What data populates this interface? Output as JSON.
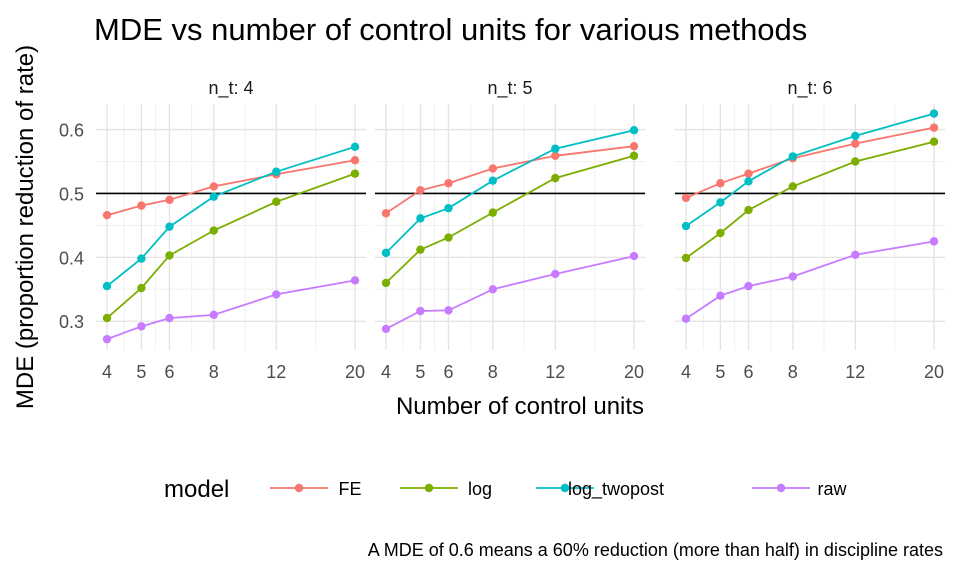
{
  "chart_data": {
    "type": "line",
    "title": "MDE vs number of control units for various methods",
    "xlabel": "Number of control units",
    "ylabel": "MDE (proportion reduction of rate)",
    "caption": "A MDE of 0.6 means a 60% reduction (more than half) in discipline rates",
    "x_scale": "log",
    "x_ticks": [
      4,
      5,
      6,
      8,
      12,
      20
    ],
    "x_range": [
      4,
      20
    ],
    "y_ticks": [
      0.3,
      0.4,
      0.5,
      0.6
    ],
    "y_range": [
      0.255,
      0.64
    ],
    "reference_line": 0.5,
    "grid": true,
    "legend": {
      "title": "model",
      "placement": "bottom",
      "entries": [
        "FE",
        "log",
        "log_twopost",
        "raw"
      ]
    },
    "colors": {
      "FE": "#F8766D",
      "log": "#7CAE00",
      "log_twopost": "#00BFC4",
      "raw": "#C77CFF"
    },
    "panels": [
      {
        "label": "n_t: 4",
        "x": [
          4,
          5,
          6,
          8,
          12,
          20
        ],
        "series": [
          {
            "name": "FE",
            "values": [
              0.466,
              0.481,
              0.49,
              0.511,
              0.53,
              0.552
            ]
          },
          {
            "name": "log",
            "values": [
              0.305,
              0.352,
              0.403,
              0.442,
              0.487,
              0.531
            ]
          },
          {
            "name": "log_twopost",
            "values": [
              0.355,
              0.398,
              0.448,
              0.495,
              0.534,
              0.573
            ]
          },
          {
            "name": "raw",
            "values": [
              0.272,
              0.292,
              0.305,
              0.31,
              0.342,
              0.364
            ]
          }
        ]
      },
      {
        "label": "n_t: 5",
        "x": [
          4,
          5,
          6,
          8,
          12,
          20
        ],
        "series": [
          {
            "name": "FE",
            "values": [
              0.469,
              0.505,
              0.516,
              0.539,
              0.559,
              0.574
            ]
          },
          {
            "name": "log",
            "values": [
              0.36,
              0.412,
              0.431,
              0.47,
              0.524,
              0.559
            ]
          },
          {
            "name": "log_twopost",
            "values": [
              0.407,
              0.461,
              0.477,
              0.52,
              0.57,
              0.599
            ]
          },
          {
            "name": "raw",
            "values": [
              0.288,
              0.316,
              0.317,
              0.35,
              0.374,
              0.402
            ]
          }
        ]
      },
      {
        "label": "n_t: 6",
        "x": [
          4,
          5,
          6,
          8,
          12,
          20
        ],
        "series": [
          {
            "name": "FE",
            "values": [
              0.493,
              0.516,
              0.531,
              0.555,
              0.578,
              0.603
            ]
          },
          {
            "name": "log",
            "values": [
              0.399,
              0.438,
              0.474,
              0.511,
              0.55,
              0.581
            ]
          },
          {
            "name": "log_twopost",
            "values": [
              0.449,
              0.486,
              0.519,
              0.558,
              0.59,
              0.625
            ]
          },
          {
            "name": "raw",
            "values": [
              0.304,
              0.34,
              0.355,
              0.37,
              0.404,
              0.425
            ]
          }
        ]
      }
    ]
  }
}
